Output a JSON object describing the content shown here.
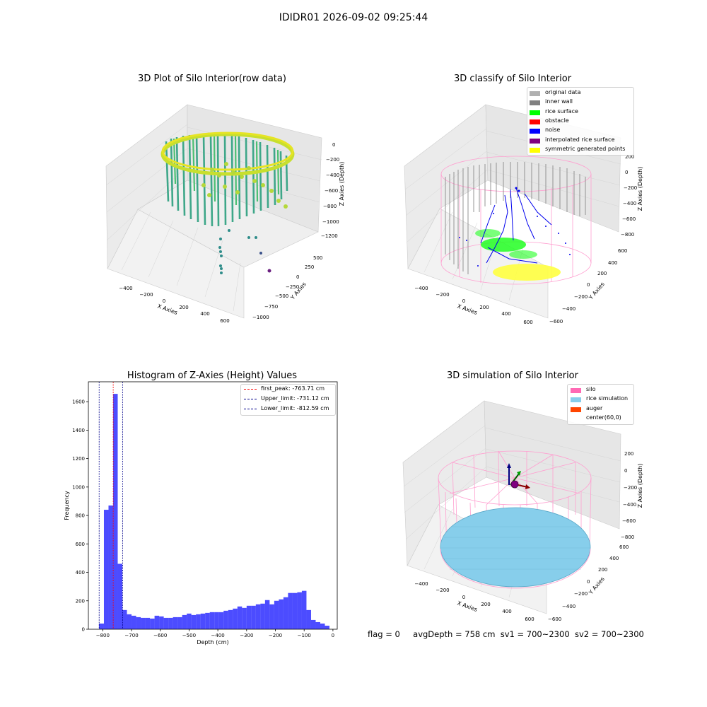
{
  "figure": {
    "suptitle": "IDIDR01 2026-09-02 09:25:44"
  },
  "panels": {
    "raw": {
      "title": "3D Plot of Silo Interior(row data)",
      "xlabel": "X Axies",
      "ylabel": "Y Axies",
      "zlabel": "Z Axies (Depth)",
      "xticks": [
        "−400",
        "−200",
        "0",
        "200",
        "400",
        "600"
      ],
      "yticks": [
        "500",
        "250",
        "0",
        "−250",
        "−500",
        "−750",
        "−1000"
      ],
      "zticks": [
        "0",
        "−200",
        "−400",
        "−600",
        "−800",
        "−1000",
        "−1200"
      ]
    },
    "classify": {
      "title": "3D classify of Silo Interior",
      "xlabel": "X Axies",
      "ylabel": "Y Axies",
      "zlabel": "Z Axies (Depth)",
      "xticks": [
        "−400",
        "−200",
        "0",
        "200",
        "400",
        "600"
      ],
      "yticks": [
        "600",
        "400",
        "200",
        "0",
        "−200",
        "−400",
        "−600"
      ],
      "zticks": [
        "200",
        "0",
        "−200",
        "−400",
        "−600",
        "−800"
      ],
      "legend": [
        {
          "label": "original data",
          "color": "#b0b0b0"
        },
        {
          "label": "inner wall",
          "color": "#808080"
        },
        {
          "label": "rice surface",
          "color": "#00ff00"
        },
        {
          "label": "obstacle",
          "color": "#ff0000"
        },
        {
          "label": "noise",
          "color": "#0000ff"
        },
        {
          "label": "interpolated rice surface",
          "color": "#800080"
        },
        {
          "label": "symmetric generated points",
          "color": "#ffff00"
        }
      ]
    },
    "simulation": {
      "title": "3D simulation of Silo Interior",
      "xlabel": "X Axies",
      "ylabel": "Y Axies",
      "zlabel": "Z Axies (Depth)",
      "xticks": [
        "−400",
        "−200",
        "0",
        "200",
        "400",
        "600"
      ],
      "yticks": [
        "600",
        "400",
        "200",
        "0",
        "−200",
        "−400",
        "−600"
      ],
      "zticks": [
        "200",
        "0",
        "−200",
        "−400",
        "−600",
        "−800"
      ],
      "legend": [
        {
          "label": "silo",
          "color": "#ff69b4"
        },
        {
          "label": "rice simulation",
          "color": "#87ceeb"
        },
        {
          "label": "auger",
          "color": "#ff4500"
        },
        {
          "label": "center(60,0)",
          "color": "#ffffff"
        }
      ]
    }
  },
  "chart_data": {
    "type": "bar",
    "title": "Histogram of Z-Axies (Height) Values",
    "xlabel": "Depth (cm)",
    "ylabel": "Frequency",
    "xlim": [
      -850,
      15
    ],
    "ylim": [
      0,
      1740
    ],
    "xticks": [
      -800,
      -700,
      -600,
      -500,
      -400,
      -300,
      -200,
      -100,
      0
    ],
    "xtick_labels": [
      "−800",
      "−700",
      "−600",
      "−500",
      "−400",
      "−300",
      "−200",
      "−100",
      "0"
    ],
    "yticks": [
      0,
      200,
      400,
      600,
      800,
      1000,
      1200,
      1400,
      1600
    ],
    "bar_color": "#0000ff",
    "bins": [
      {
        "left": -830,
        "right": -813,
        "value": 0
      },
      {
        "left": -813,
        "right": -796,
        "value": 40
      },
      {
        "left": -796,
        "right": -780,
        "value": 840
      },
      {
        "left": -780,
        "right": -764,
        "value": 870
      },
      {
        "left": -764,
        "right": -748,
        "value": 1655
      },
      {
        "left": -748,
        "right": -732,
        "value": 460
      },
      {
        "left": -732,
        "right": -716,
        "value": 135
      },
      {
        "left": -716,
        "right": -700,
        "value": 105
      },
      {
        "left": -700,
        "right": -684,
        "value": 95
      },
      {
        "left": -684,
        "right": -668,
        "value": 85
      },
      {
        "left": -668,
        "right": -652,
        "value": 80
      },
      {
        "left": -652,
        "right": -636,
        "value": 80
      },
      {
        "left": -636,
        "right": -620,
        "value": 75
      },
      {
        "left": -620,
        "right": -604,
        "value": 95
      },
      {
        "left": -604,
        "right": -588,
        "value": 90
      },
      {
        "left": -588,
        "right": -572,
        "value": 80
      },
      {
        "left": -572,
        "right": -556,
        "value": 80
      },
      {
        "left": -556,
        "right": -540,
        "value": 85
      },
      {
        "left": -540,
        "right": -524,
        "value": 85
      },
      {
        "left": -524,
        "right": -508,
        "value": 100
      },
      {
        "left": -508,
        "right": -492,
        "value": 110
      },
      {
        "left": -492,
        "right": -476,
        "value": 100
      },
      {
        "left": -476,
        "right": -460,
        "value": 105
      },
      {
        "left": -460,
        "right": -444,
        "value": 110
      },
      {
        "left": -444,
        "right": -428,
        "value": 115
      },
      {
        "left": -428,
        "right": -412,
        "value": 120
      },
      {
        "left": -412,
        "right": -396,
        "value": 120
      },
      {
        "left": -396,
        "right": -380,
        "value": 120
      },
      {
        "left": -380,
        "right": -364,
        "value": 130
      },
      {
        "left": -364,
        "right": -348,
        "value": 135
      },
      {
        "left": -348,
        "right": -332,
        "value": 145
      },
      {
        "left": -332,
        "right": -316,
        "value": 160
      },
      {
        "left": -316,
        "right": -300,
        "value": 150
      },
      {
        "left": -300,
        "right": -284,
        "value": 165
      },
      {
        "left": -284,
        "right": -268,
        "value": 165
      },
      {
        "left": -268,
        "right": -252,
        "value": 175
      },
      {
        "left": -252,
        "right": -236,
        "value": 180
      },
      {
        "left": -236,
        "right": -220,
        "value": 205
      },
      {
        "left": -220,
        "right": -204,
        "value": 175
      },
      {
        "left": -204,
        "right": -188,
        "value": 200
      },
      {
        "left": -188,
        "right": -172,
        "value": 210
      },
      {
        "left": -172,
        "right": -156,
        "value": 225
      },
      {
        "left": -156,
        "right": -140,
        "value": 255
      },
      {
        "left": -140,
        "right": -124,
        "value": 255
      },
      {
        "left": -124,
        "right": -108,
        "value": 260
      },
      {
        "left": -108,
        "right": -92,
        "value": 270
      },
      {
        "left": -92,
        "right": -76,
        "value": 135
      },
      {
        "left": -76,
        "right": -60,
        "value": 65
      },
      {
        "left": -60,
        "right": -44,
        "value": 50
      },
      {
        "left": -44,
        "right": -28,
        "value": 40
      },
      {
        "left": -28,
        "right": -12,
        "value": 25
      }
    ],
    "vlines": [
      {
        "label": "first_peak: -763.71 cm",
        "x": -763.71,
        "color": "#ff0000"
      },
      {
        "label": "Upper_limit: -731.12 cm",
        "x": -731.12,
        "color": "#00008b"
      },
      {
        "label": "Lower_limit: -812.59 cm",
        "x": -812.59,
        "color": "#00008b"
      }
    ],
    "legend_position": "upper right"
  },
  "footer": {
    "flag": "flag = 0",
    "avg": "avgDepth = 758 cm",
    "sv1": "sv1 = 700~2300",
    "sv2": "sv2 = 700~2300"
  }
}
